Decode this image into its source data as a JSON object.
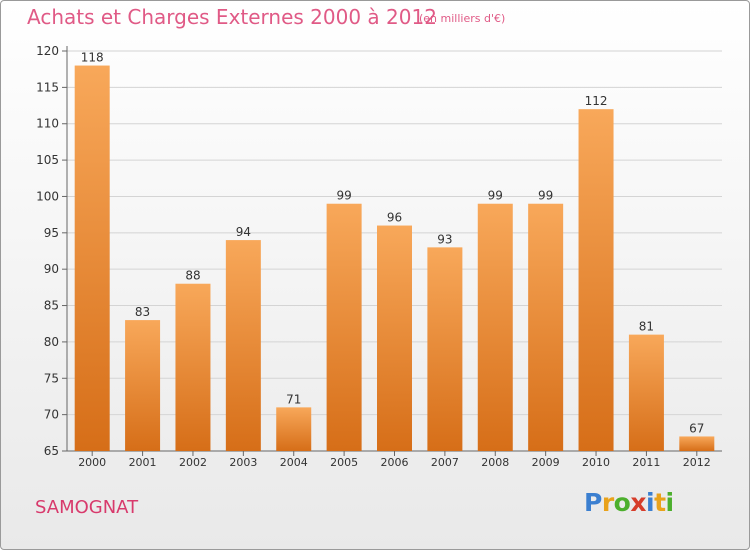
{
  "title": "Achats et Charges Externes 2000 à 2012",
  "subtitle": "(en milliers d'€)",
  "city": "SAMOGNAT",
  "logo": {
    "text": "Proxiti",
    "letters": [
      {
        "c": "P",
        "color": "#3b7fd0"
      },
      {
        "c": "r",
        "color": "#e9a21b"
      },
      {
        "c": "o",
        "color": "#4caf2d"
      },
      {
        "c": "x",
        "color": "#d63d2a"
      },
      {
        "c": "i",
        "color": "#3b7fd0"
      },
      {
        "c": "t",
        "color": "#e9a21b"
      },
      {
        "c": "i",
        "color": "#4caf2d"
      }
    ]
  },
  "colors": {
    "bar_top": "#f8a85a",
    "bar_bottom": "#d66e18",
    "text": "#333333",
    "accent": "#e05a86"
  },
  "chart_data": {
    "type": "bar",
    "title": "Achats et Charges Externes 2000 à 2012",
    "subtitle": "(en milliers d'€)",
    "xlabel": "",
    "ylabel": "",
    "categories": [
      "2000",
      "2001",
      "2002",
      "2003",
      "2004",
      "2005",
      "2006",
      "2007",
      "2008",
      "2009",
      "2010",
      "2011",
      "2012"
    ],
    "values": [
      118,
      83,
      88,
      94,
      71,
      99,
      96,
      93,
      99,
      99,
      112,
      81,
      67
    ],
    "ylim": [
      65,
      120
    ],
    "yticks": [
      65,
      70,
      75,
      80,
      85,
      90,
      95,
      100,
      105,
      110,
      115,
      120
    ],
    "grid": true,
    "legend": "none"
  }
}
